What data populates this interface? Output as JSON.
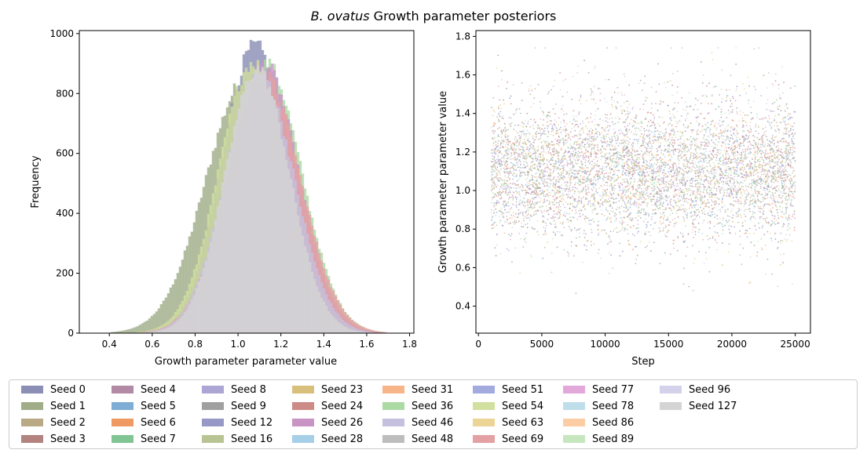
{
  "figure": {
    "title_italic": "B. ovatus",
    "title_rest": " Growth parameter posteriors"
  },
  "chart_data": [
    {
      "type": "histogram",
      "xlabel": "Growth parameter parameter value",
      "ylabel": "Frequency",
      "xlim": [
        0.26,
        1.82
      ],
      "ylim": [
        0,
        1010
      ],
      "xticks": [
        "0.4",
        "0.6",
        "0.8",
        "1.0",
        "1.2",
        "1.4",
        "1.6",
        "1.8"
      ],
      "yticks": [
        "0",
        "200",
        "400",
        "600",
        "800",
        "1000"
      ],
      "series": [
        {
          "name": "Seed 1",
          "mean": 1.04,
          "sd": 0.19,
          "peak": 850
        },
        {
          "name": "Seed 6",
          "mean": 1.1,
          "sd": 0.165,
          "peak": 880
        },
        {
          "name": "Seed 0",
          "mean": 1.08,
          "sd": 0.155,
          "peak": 960
        },
        {
          "name": "Seed 36",
          "mean": 1.13,
          "sd": 0.165,
          "peak": 900
        },
        {
          "name": "Seed 26",
          "mean": 1.12,
          "sd": 0.16,
          "peak": 900
        },
        {
          "name": "Seed 54",
          "mean": 1.07,
          "sd": 0.16,
          "peak": 905
        },
        {
          "name": "Seed 69",
          "mean": 1.12,
          "sd": 0.17,
          "peak": 860
        },
        {
          "name": "Seed 46",
          "mean": 1.1,
          "sd": 0.16,
          "peak": 870
        },
        {
          "name": "Seed 127",
          "mean": 1.09,
          "sd": 0.15,
          "peak": 880
        }
      ]
    },
    {
      "type": "scatter",
      "xlabel": "Step",
      "ylabel": "Growth parameter parameter value",
      "xlim": [
        -200,
        26200
      ],
      "ylim": [
        0.26,
        1.83
      ],
      "xticks": [
        "0",
        "5000",
        "10000",
        "15000",
        "20000",
        "25000"
      ],
      "yticks": [
        "0.4",
        "0.6",
        "0.8",
        "1.0",
        "1.2",
        "1.4",
        "1.6",
        "1.8"
      ],
      "x_range": [
        1000,
        25000
      ],
      "center": 1.1,
      "spread": 0.16
    }
  ],
  "legend": [
    {
      "label": "Seed 0",
      "color": "#8b8fb5"
    },
    {
      "label": "Seed 1",
      "color": "#a0ad88"
    },
    {
      "label": "Seed 2",
      "color": "#baa985"
    },
    {
      "label": "Seed 3",
      "color": "#b2837f"
    },
    {
      "label": "Seed 4",
      "color": "#b38aa5"
    },
    {
      "label": "Seed 5",
      "color": "#7eaed6"
    },
    {
      "label": "Seed 6",
      "color": "#ef9a63"
    },
    {
      "label": "Seed 7",
      "color": "#81c594"
    },
    {
      "label": "Seed 8",
      "color": "#aba6d3"
    },
    {
      "label": "Seed 9",
      "color": "#a0a0a0"
    },
    {
      "label": "Seed 12",
      "color": "#9898c7"
    },
    {
      "label": "Seed 16",
      "color": "#b8c493"
    },
    {
      "label": "Seed 23",
      "color": "#d8c07c"
    },
    {
      "label": "Seed 24",
      "color": "#cc8b87"
    },
    {
      "label": "Seed 26",
      "color": "#c894c4"
    },
    {
      "label": "Seed 28",
      "color": "#a6cfe8"
    },
    {
      "label": "Seed 31",
      "color": "#f9b58a"
    },
    {
      "label": "Seed 36",
      "color": "#acdaa5"
    },
    {
      "label": "Seed 46",
      "color": "#c4c0dd"
    },
    {
      "label": "Seed 48",
      "color": "#bdbdbd"
    },
    {
      "label": "Seed 51",
      "color": "#a3aadd"
    },
    {
      "label": "Seed 54",
      "color": "#d1df9f"
    },
    {
      "label": "Seed 63",
      "color": "#ecd497"
    },
    {
      "label": "Seed 69",
      "color": "#e4a1a3"
    },
    {
      "label": "Seed 77",
      "color": "#e3a8da"
    },
    {
      "label": "Seed 78",
      "color": "#bedfea"
    },
    {
      "label": "Seed 86",
      "color": "#fccda4"
    },
    {
      "label": "Seed 89",
      "color": "#c6e6c0"
    },
    {
      "label": "Seed 96",
      "color": "#d3d2ea"
    },
    {
      "label": "Seed 127",
      "color": "#d4d4d4"
    }
  ]
}
